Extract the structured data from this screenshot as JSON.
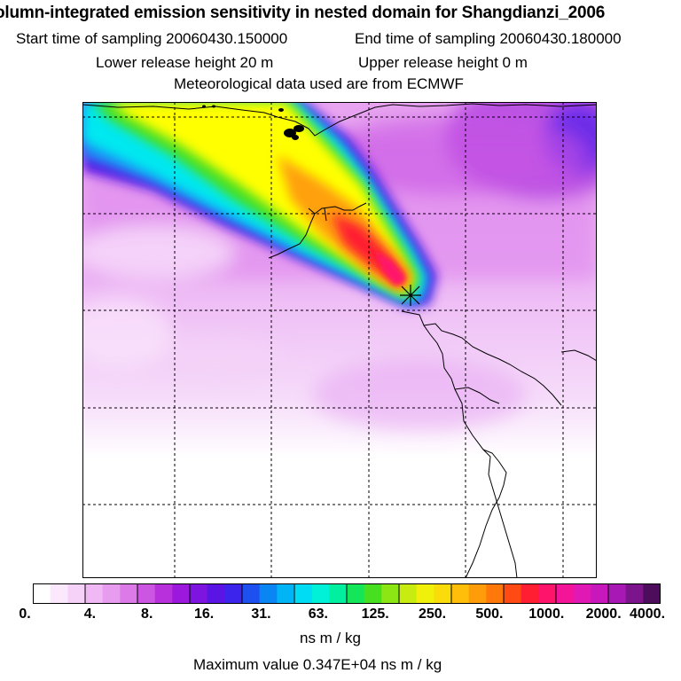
{
  "header": {
    "title": "olumn-integrated emission sensitivity in nested domain for Shangdianzi_2006",
    "start_time": "Start time of sampling 20060430.150000",
    "end_time": "End time of sampling 20060430.180000",
    "lower_height": "Lower release height   20 m",
    "upper_height": "Upper release height    0 m",
    "met_data": "Meteorological data used are from ECMWF"
  },
  "colorbar": {
    "ticks": [
      "0.",
      "4.",
      "8.",
      "16.",
      "31.",
      "63.",
      "125.",
      "250.",
      "500.",
      "1000.",
      "2000.",
      "4000."
    ],
    "units": "ns m / kg",
    "colors": [
      "#ffffff",
      "#fce8fc",
      "#f6d2f8",
      "#f0b8f4",
      "#e89cf0",
      "#dc7ae8",
      "#cc55e2",
      "#b830dc",
      "#9c18dc",
      "#7d14e0",
      "#5a14e4",
      "#3c24ec",
      "#1e50f0",
      "#0a86f4",
      "#00b4f6",
      "#00dcf4",
      "#00f0d8",
      "#00f0a0",
      "#14e65a",
      "#46e020",
      "#8ce614",
      "#c8ec10",
      "#f0f00a",
      "#fadc0a",
      "#ffbe0a",
      "#ff9c0a",
      "#ff780a",
      "#ff4a14",
      "#ff1e32",
      "#ff146c",
      "#f41498",
      "#e018b4",
      "#c818bc",
      "#a818b4",
      "#7c148c",
      "#4e0c5c"
    ]
  },
  "max_value_text": "Maximum value  0.347E+04 ns m / kg",
  "map": {
    "grid_lines": "dashed",
    "receptor": "Shangdianzi",
    "plume_colors": [
      "#ffff00",
      "#c8f020",
      "#00f0f0",
      "#ff2850",
      "#9c18dc",
      "#5a14e4"
    ]
  }
}
